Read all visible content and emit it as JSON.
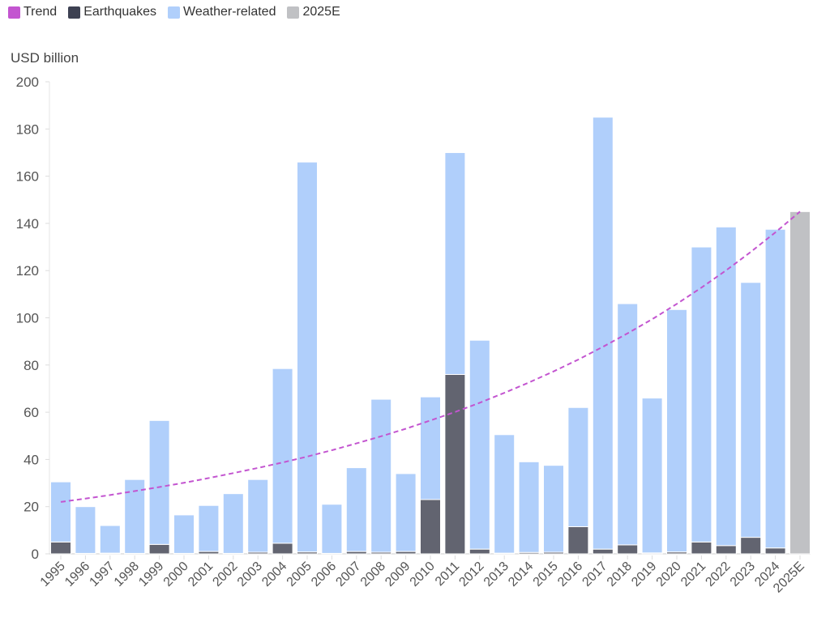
{
  "chart_data": {
    "type": "bar",
    "stacked": true,
    "ylabel": "USD billion",
    "ylim": [
      0,
      200
    ],
    "yticks": [
      0,
      20,
      40,
      60,
      80,
      100,
      120,
      140,
      160,
      180,
      200
    ],
    "legend_position": "top-left",
    "categories": [
      "1995",
      "1996",
      "1997",
      "1998",
      "1999",
      "2000",
      "2001",
      "2002",
      "2003",
      "2004",
      "2005",
      "2006",
      "2007",
      "2008",
      "2009",
      "2010",
      "2011",
      "2012",
      "2013",
      "2014",
      "2015",
      "2016",
      "2017",
      "2018",
      "2019",
      "2020",
      "2021",
      "2022",
      "2023",
      "2024",
      "2025E"
    ],
    "series": [
      {
        "name": "Earthquakes",
        "color": "#626470",
        "legend_color": "#3d4152",
        "values": [
          5,
          0.2,
          0.3,
          0.2,
          4,
          0.2,
          1,
          0.2,
          0.7,
          4.5,
          0.8,
          0.2,
          1,
          0.7,
          1,
          23,
          76,
          2,
          0.3,
          0.6,
          0.7,
          11.5,
          2,
          3.8,
          0.4,
          0.8,
          5,
          3.5,
          7,
          2.5,
          null
        ]
      },
      {
        "name": "Weather-related",
        "color": "#b0cffb",
        "values": [
          25.5,
          19.8,
          11.7,
          31.3,
          52.5,
          16.3,
          19.5,
          25.3,
          30.8,
          74,
          165.2,
          20.8,
          35.5,
          64.8,
          33,
          43.5,
          94,
          88.5,
          50.2,
          38.4,
          36.8,
          50.5,
          183,
          102.2,
          65.6,
          102.7,
          125,
          135,
          108,
          135,
          null
        ]
      },
      {
        "name": "2025E",
        "color": "#c0c1c4",
        "values": [
          null,
          null,
          null,
          null,
          null,
          null,
          null,
          null,
          null,
          null,
          null,
          null,
          null,
          null,
          null,
          null,
          null,
          null,
          null,
          null,
          null,
          null,
          null,
          null,
          null,
          null,
          null,
          null,
          null,
          null,
          145
        ]
      },
      {
        "name": "Trend",
        "color": "#c355d0",
        "style": "dashed",
        "kind": "line",
        "values": [
          22,
          23.4,
          24.9,
          26.6,
          28.3,
          30.1,
          32.1,
          34.2,
          36.4,
          38.7,
          41.2,
          43.9,
          46.8,
          49.8,
          53.0,
          56.5,
          60.1,
          64.0,
          68.2,
          72.6,
          77.3,
          82.3,
          87.7,
          93.4,
          99.4,
          105.9,
          112.8,
          120.1,
          127.9,
          136.2,
          145
        ]
      }
    ],
    "legend_order": [
      "Trend",
      "Earthquakes",
      "Weather-related",
      "2025E"
    ]
  }
}
